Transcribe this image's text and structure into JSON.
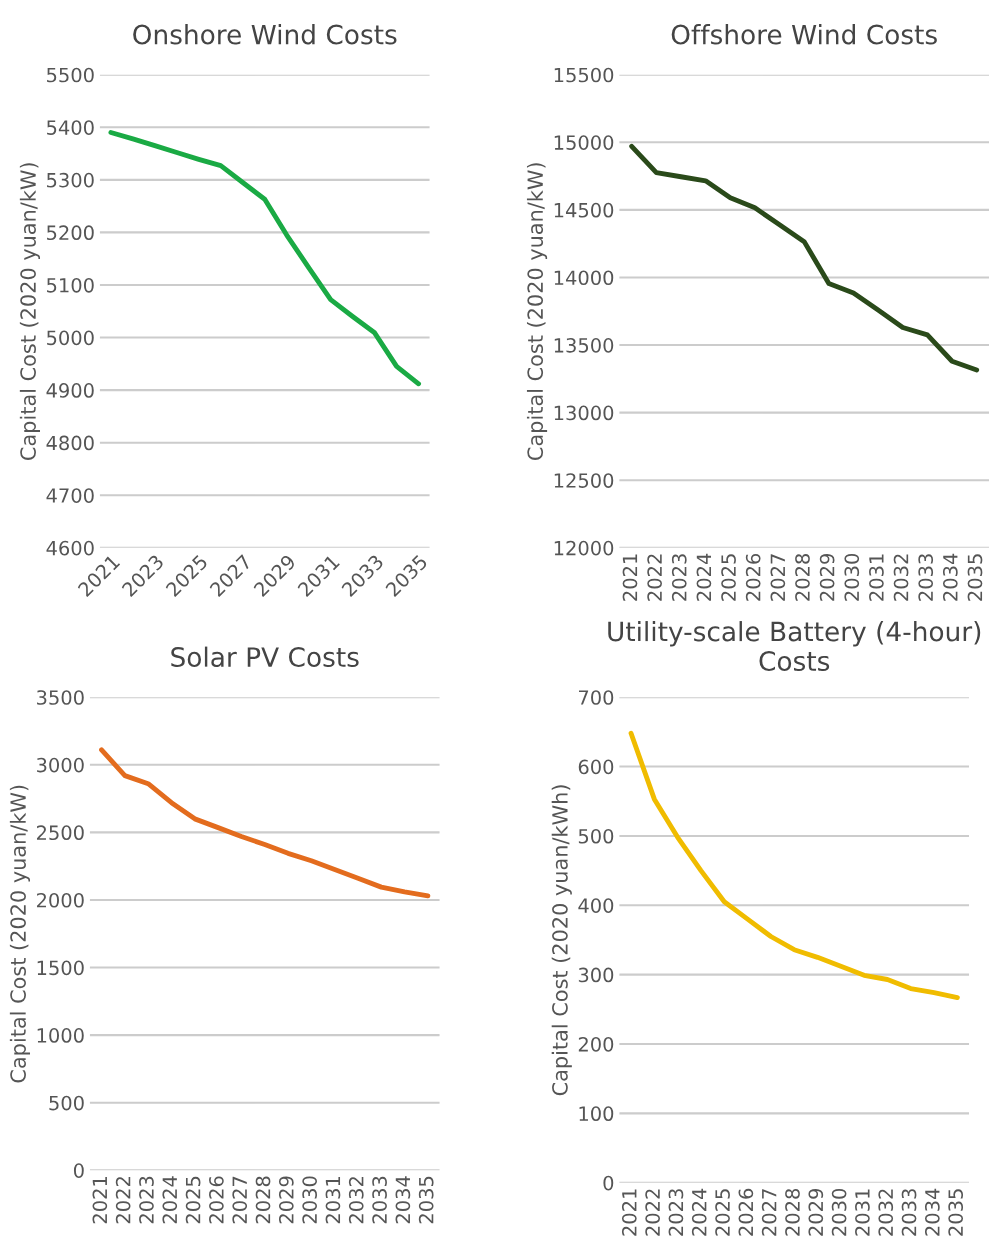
{
  "chart_data": [
    {
      "type": "line",
      "title": "Onshore Wind Costs",
      "ylabel": "Capital Cost (2020 yuan/kW)",
      "categories": [
        "2021",
        null,
        "2023",
        null,
        "2025",
        null,
        "2027",
        null,
        "2029",
        null,
        "2031",
        null,
        "2033",
        null,
        "2035"
      ],
      "series": [
        {
          "color": "#1aaa44",
          "values": [
            5390,
            5378,
            5365,
            5352,
            5339,
            5327,
            5295,
            5263,
            5195,
            5133,
            5072,
            5040,
            5009,
            4945,
            4912
          ]
        }
      ],
      "ylim": [
        4600,
        5500
      ],
      "yticks": [
        4600,
        4700,
        4800,
        4900,
        5000,
        5100,
        5200,
        5300,
        5400,
        5500
      ],
      "grid": "y"
    },
    {
      "type": "line",
      "title": "Offshore Wind Costs",
      "ylabel": "Capital Cost (2020 yuan/kW)",
      "categories": [
        "2021",
        "2022",
        "2023",
        "2024",
        "2025",
        "2026",
        "2027",
        "2028",
        "2029",
        "2030",
        "2031",
        "2032",
        "2033",
        "2034",
        "2035"
      ],
      "series": [
        {
          "color": "#2a4a1a",
          "values": [
            14970,
            14775,
            14745,
            14715,
            14590,
            14515,
            14390,
            14265,
            13955,
            13885,
            13760,
            13630,
            13575,
            13380,
            13315
          ]
        }
      ],
      "ylim": [
        12000,
        15500
      ],
      "yticks": [
        12000,
        12500,
        13000,
        13500,
        14000,
        14500,
        15000,
        15500
      ],
      "grid": "y"
    },
    {
      "type": "line",
      "title": "Solar PV Costs",
      "ylabel": "Capital Cost (2020 yuan/kW)",
      "categories": [
        "2021",
        "2022",
        "2023",
        "2024",
        "2025",
        "2026",
        "2027",
        "2028",
        "2029",
        "2030",
        "2031",
        "2032",
        "2033",
        "2034",
        "2035"
      ],
      "series": [
        {
          "color": "#e36c1e",
          "values": [
            3110,
            2920,
            2860,
            2720,
            2600,
            2535,
            2470,
            2410,
            2345,
            2290,
            2225,
            2160,
            2095,
            2060,
            2030
          ]
        }
      ],
      "ylim": [
        0,
        3500
      ],
      "yticks": [
        0,
        500,
        1000,
        1500,
        2000,
        2500,
        3000,
        3500
      ],
      "grid": "y"
    },
    {
      "type": "line",
      "title": "Utility-scale Battery (4-hour) Costs",
      "ylabel": "Capital Cost (2020 yuan/kWh)",
      "categories": [
        "2021",
        "2022",
        "2023",
        "2024",
        "2025",
        "2026",
        "2027",
        "2028",
        "2029",
        "2030",
        "2031",
        "2032",
        "2033",
        "2034",
        "2035"
      ],
      "series": [
        {
          "color": "#f0bc00",
          "values": [
            648,
            553,
            498,
            450,
            405,
            380,
            355,
            336,
            325,
            312,
            299,
            293,
            280,
            274,
            267
          ]
        }
      ],
      "ylim": [
        0,
        700
      ],
      "yticks": [
        0,
        100,
        200,
        300,
        400,
        500,
        600,
        700
      ],
      "grid": "y"
    }
  ]
}
